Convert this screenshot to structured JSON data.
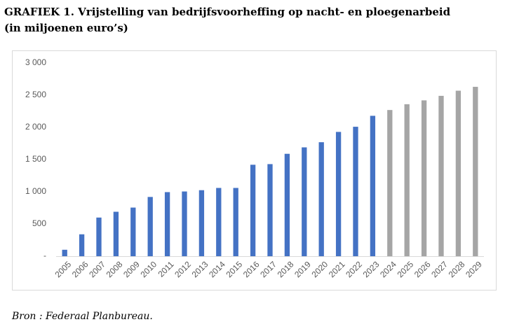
{
  "chart_data": {
    "type": "bar",
    "title": "GRAFIEK 1. Vrijstelling van bedrijfsvoorheffing op nacht- en ploegenarbeid",
    "subtitle": "(in miljoenen euro’s)",
    "source": "Bron : Federaal Planbureau.",
    "categories": [
      "2005",
      "2006",
      "2007",
      "2008",
      "2009",
      "2010",
      "2011",
      "2012",
      "2013",
      "2014",
      "2015",
      "2016",
      "2017",
      "2018",
      "2019",
      "2020",
      "2021",
      "2022",
      "2023",
      "2024",
      "2025",
      "2026",
      "2027",
      "2028",
      "2029"
    ],
    "values": [
      100,
      340,
      600,
      690,
      755,
      920,
      995,
      1005,
      1025,
      1060,
      1060,
      1420,
      1430,
      1590,
      1690,
      1770,
      1930,
      2010,
      2180,
      2270,
      2360,
      2420,
      2490,
      2570,
      2630
    ],
    "colors": [
      "#4472c4",
      "#4472c4",
      "#4472c4",
      "#4472c4",
      "#4472c4",
      "#4472c4",
      "#4472c4",
      "#4472c4",
      "#4472c4",
      "#4472c4",
      "#4472c4",
      "#4472c4",
      "#4472c4",
      "#4472c4",
      "#4472c4",
      "#4472c4",
      "#4472c4",
      "#4472c4",
      "#4472c4",
      "#a5a5a5",
      "#a5a5a5",
      "#a5a5a5",
      "#a5a5a5",
      "#a5a5a5",
      "#a5a5a5"
    ],
    "ylim": [
      0,
      3000
    ],
    "yticks": [
      {
        "value": 0,
        "label": "-"
      },
      500,
      {
        "value": 1000,
        "label": "1 000"
      },
      {
        "value": 1500,
        "label": "1 500"
      },
      {
        "value": 2000,
        "label": "2 000"
      },
      {
        "value": 2500,
        "label": "2 500"
      },
      {
        "value": 3000,
        "label": "3 000"
      }
    ],
    "grid": false
  }
}
